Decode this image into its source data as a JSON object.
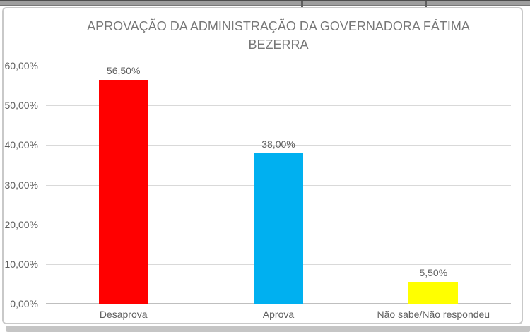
{
  "chart_data": {
    "type": "bar",
    "title": "APROVAÇÃO DA ADMINISTRAÇÃO DA GOVERNADORA FÁTIMA BEZERRA",
    "categories": [
      "Desaprova",
      "Aprova",
      "Não sabe/Não respondeu"
    ],
    "values": [
      56.5,
      38.0,
      5.5
    ],
    "value_labels": [
      "56,50%",
      "38,00%",
      "5,50%"
    ],
    "bar_colors": [
      "#ff0000",
      "#00b0f0",
      "#ffff00"
    ],
    "ylim": [
      0,
      60
    ],
    "yticks": [
      0,
      10,
      20,
      30,
      40,
      50,
      60
    ],
    "ytick_labels": [
      "0,00%",
      "10,00%",
      "20,00%",
      "30,00%",
      "40,00%",
      "50,00%",
      "60,00%"
    ],
    "grid": true,
    "legend_position": "none",
    "xlabel": "",
    "ylabel": "",
    "colors": {
      "text": "#5f5f5f",
      "title_text": "#787878",
      "gridline": "#d9d9d9",
      "axis_line": "#bfbfbf",
      "chart_border": "#c9c9c9"
    }
  }
}
